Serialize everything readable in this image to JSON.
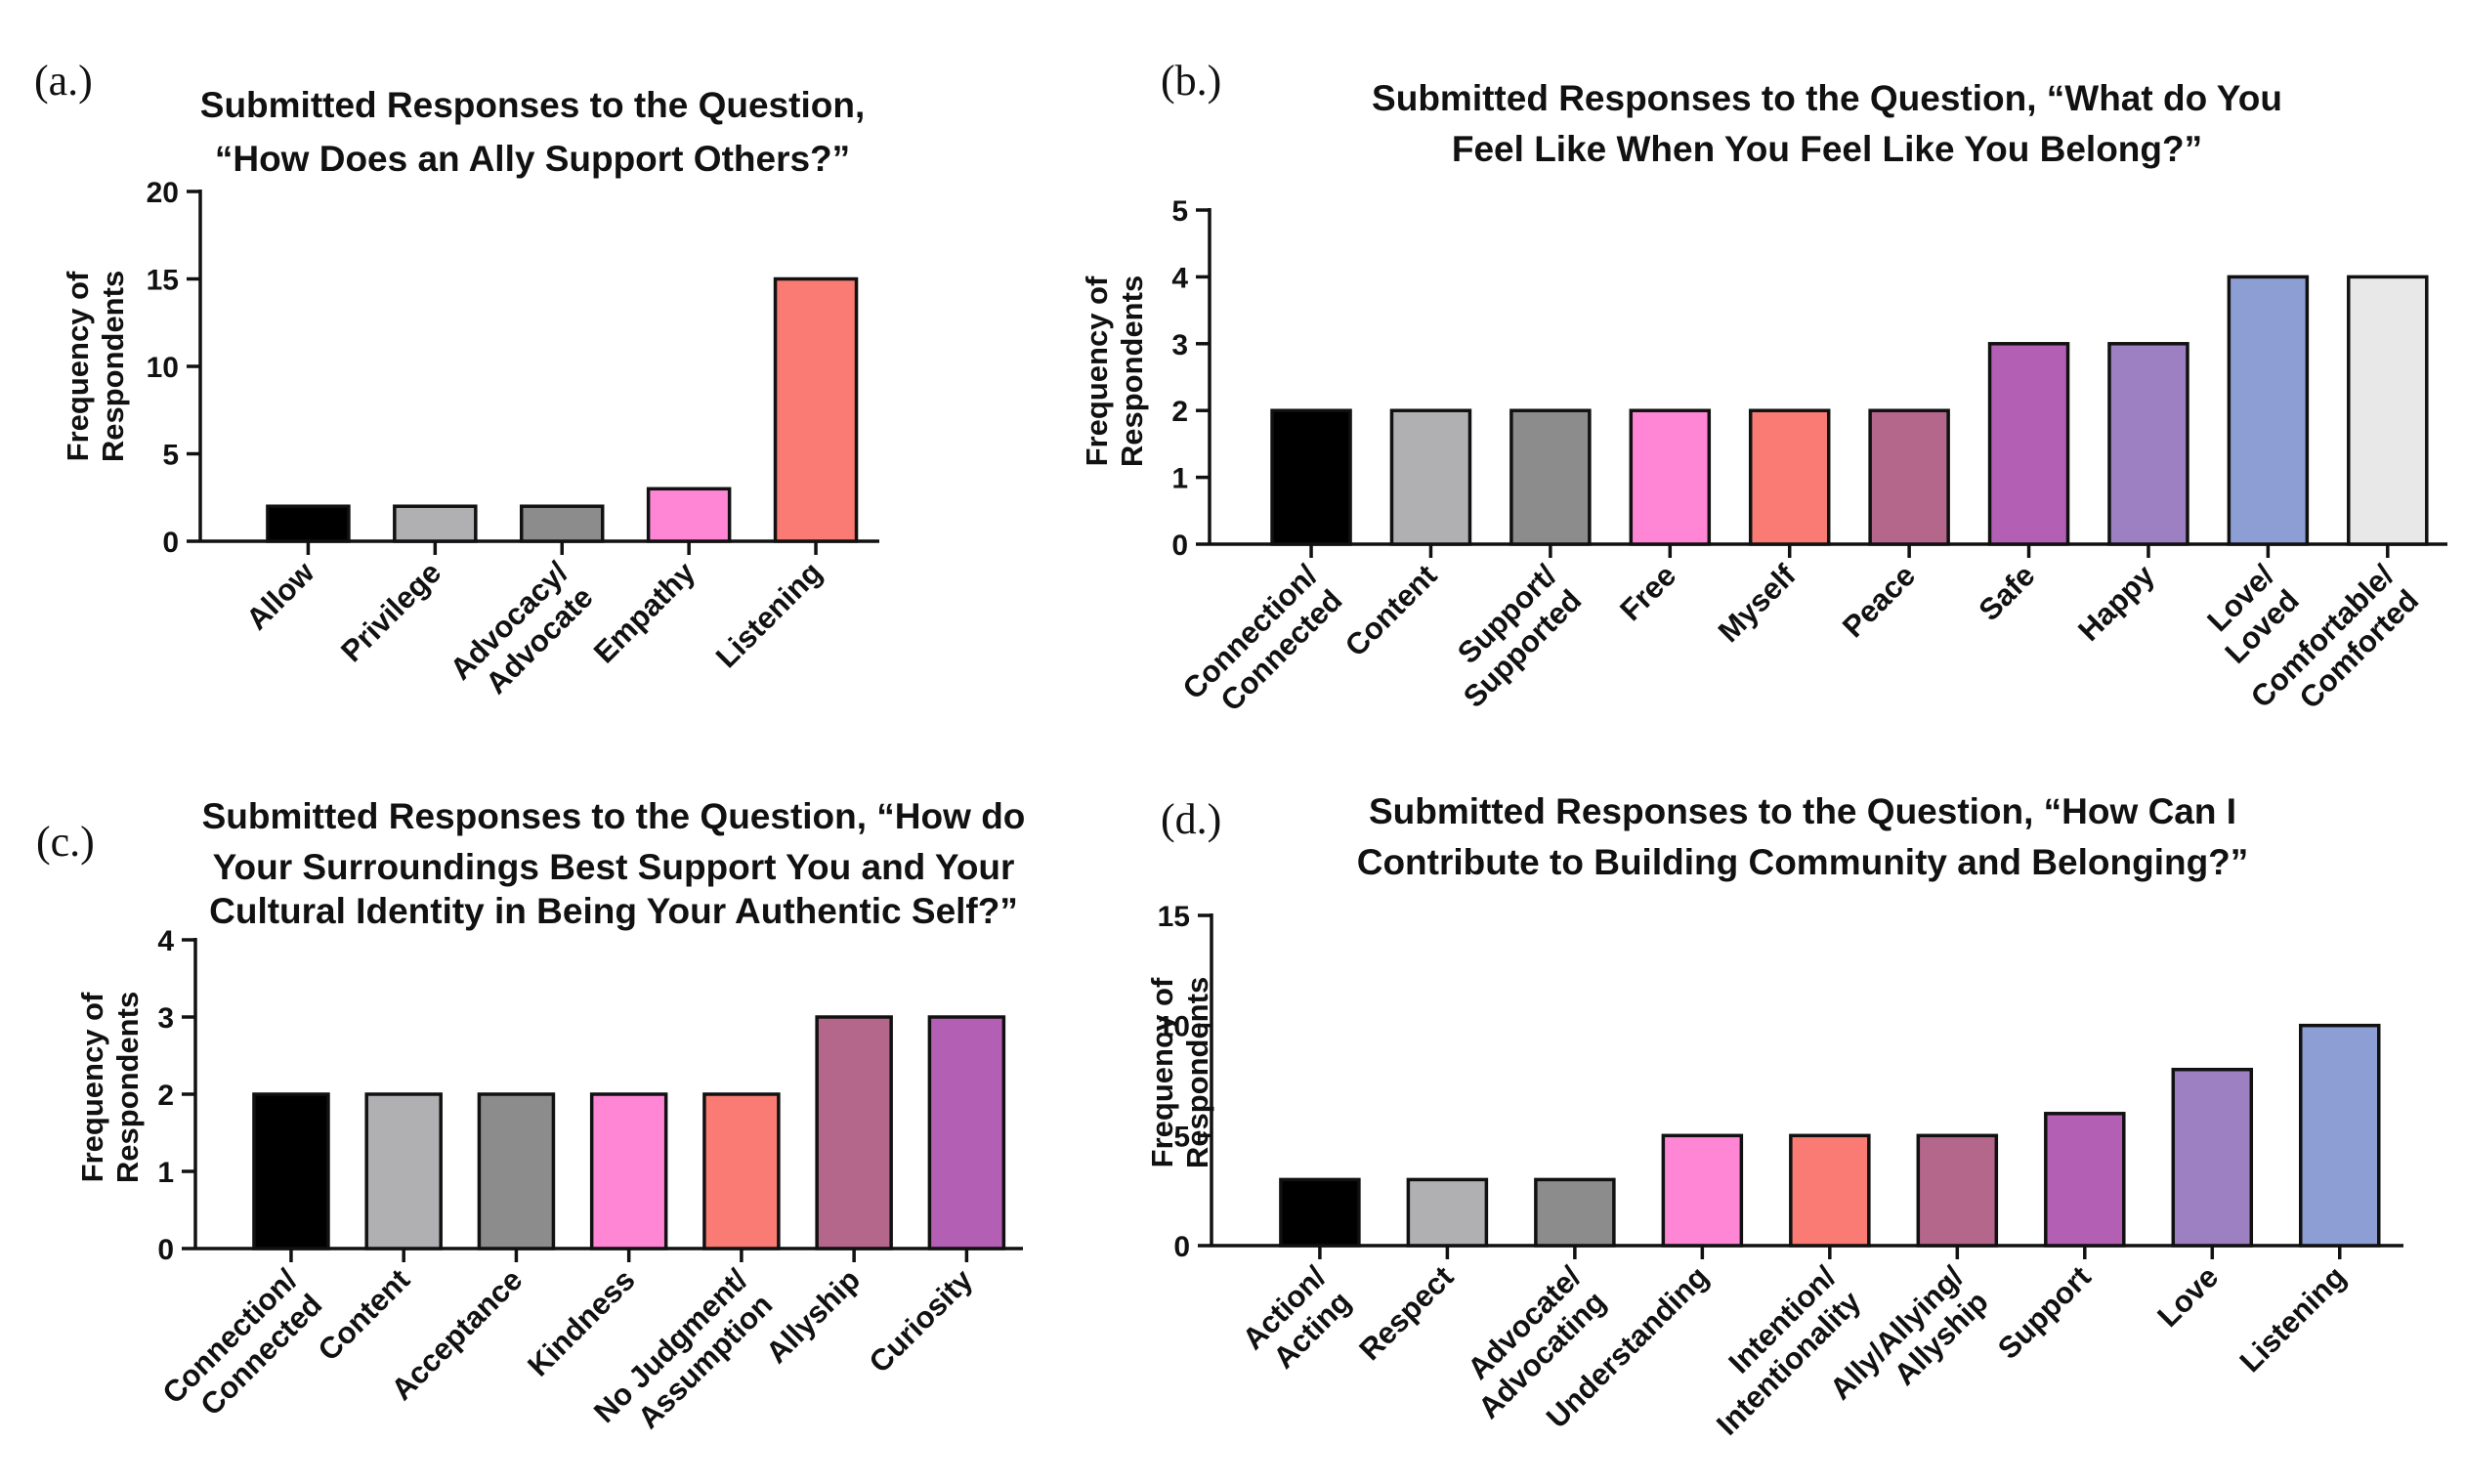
{
  "figure_title": "Submitted responses panels",
  "chart_data": [
    {
      "id": "a",
      "panel_label": "(a.)",
      "type": "bar",
      "title_lines": [
        "Submitted Responses to the Question,",
        "“How Does an Ally Support Others?”"
      ],
      "ylabel_lines": [
        "Frequency of",
        "Respondents"
      ],
      "ylim": [
        0,
        20
      ],
      "yticks": [
        0,
        5,
        10,
        15,
        20
      ],
      "categories": [
        [
          "Allow"
        ],
        [
          "Privilege"
        ],
        [
          "Advocacy/",
          "Advocate"
        ],
        [
          "Empathy"
        ],
        [
          "Listening"
        ]
      ],
      "values": [
        2,
        2,
        2,
        3,
        15
      ],
      "colors": [
        "#000000",
        "#b0b0b3",
        "#8c8c8c",
        "#ff85d5",
        "#f97b73"
      ]
    },
    {
      "id": "b",
      "panel_label": "(b.)",
      "type": "bar",
      "title_lines": [
        "Submitted Responses to the Question, “What do You",
        "Feel Like When You Feel Like You Belong?”"
      ],
      "ylabel_lines": [
        "Frequency of",
        "Respondents"
      ],
      "ylim": [
        0,
        5
      ],
      "yticks": [
        0,
        1,
        2,
        3,
        4,
        5
      ],
      "categories": [
        [
          "Connection/",
          "Connected"
        ],
        [
          "Content"
        ],
        [
          "Support/",
          "Supported"
        ],
        [
          "Free"
        ],
        [
          "Myself"
        ],
        [
          "Peace"
        ],
        [
          "Safe"
        ],
        [
          "Happy"
        ],
        [
          "Love/",
          "Loved"
        ],
        [
          "Comfortable/",
          "Comforted"
        ]
      ],
      "values": [
        2,
        2,
        2,
        2,
        2,
        2,
        3,
        3,
        4,
        4
      ],
      "colors": [
        "#000000",
        "#b0b0b3",
        "#8c8c8c",
        "#ff85d5",
        "#f97b73",
        "#b5668b",
        "#b25fb4",
        "#9d80c2",
        "#8d9ed4",
        "#e8e8e8"
      ]
    },
    {
      "id": "c",
      "panel_label": "(c.)",
      "type": "bar",
      "title_lines": [
        "Submitted Responses to the Question, “How do",
        "Your Surroundings Best Support You and Your",
        "Cultural Identity in Being Your Authentic Self?”"
      ],
      "ylabel_lines": [
        "Frequency of",
        "Respondents"
      ],
      "ylim": [
        0,
        4
      ],
      "yticks": [
        0,
        1,
        2,
        3,
        4
      ],
      "categories": [
        [
          "Connection/",
          "Connected"
        ],
        [
          "Content"
        ],
        [
          "Acceptance"
        ],
        [
          "Kindness"
        ],
        [
          "No Judgment/",
          "Assumption"
        ],
        [
          "Allyship"
        ],
        [
          "Curiosity"
        ]
      ],
      "values": [
        2,
        2,
        2,
        2,
        2,
        3,
        3
      ],
      "colors": [
        "#000000",
        "#b0b0b3",
        "#8c8c8c",
        "#ff85d5",
        "#f97b73",
        "#b5668b",
        "#b25fb4"
      ]
    },
    {
      "id": "d",
      "panel_label": "(d.)",
      "type": "bar",
      "title_lines": [
        "Submitted Responses to the Question, “How Can I",
        "Contribute to Building Community and Belonging?”"
      ],
      "ylabel_lines": [
        "Frequency of",
        "Respondents"
      ],
      "ylim": [
        0,
        15
      ],
      "yticks": [
        0,
        5,
        10,
        15
      ],
      "categories": [
        [
          "Action/",
          "Acting"
        ],
        [
          "Respect"
        ],
        [
          "Advocate/",
          "Advocating"
        ],
        [
          "Understanding"
        ],
        [
          "Intention/",
          "Intentionality"
        ],
        [
          "Ally/Allying/",
          "Allyship"
        ],
        [
          "Support"
        ],
        [
          "Love"
        ],
        [
          "Listening"
        ]
      ],
      "values": [
        3,
        3,
        3,
        5,
        5,
        5,
        6,
        8,
        10
      ],
      "colors": [
        "#000000",
        "#b0b0b3",
        "#8c8c8c",
        "#ff85d5",
        "#f97b73",
        "#b5668b",
        "#b25fb4",
        "#9d80c2",
        "#8d9ed4"
      ]
    }
  ]
}
